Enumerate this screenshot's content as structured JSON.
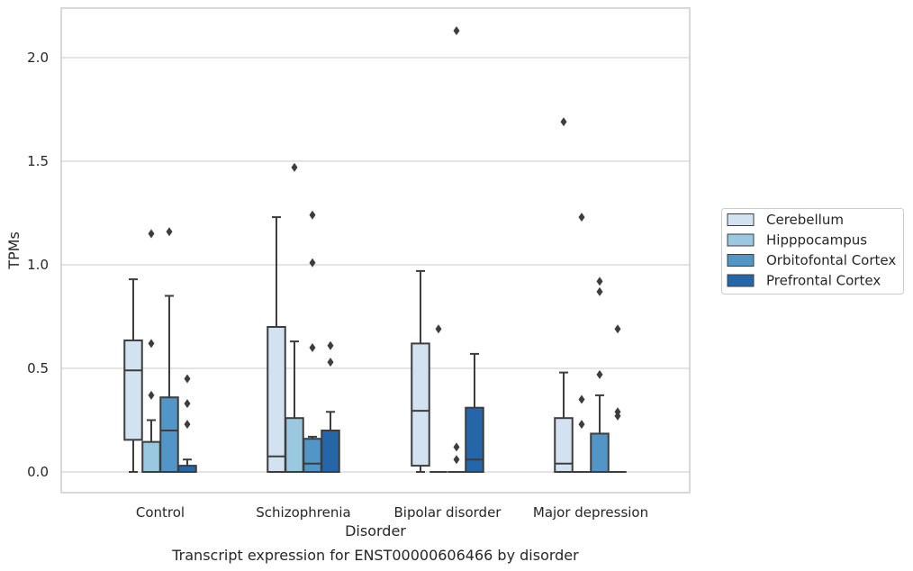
{
  "chart_data": {
    "type": "box",
    "xlabel": "Disorder",
    "ylabel": "TPMs",
    "caption": "Transcript expression for ENST00000606466 by disorder",
    "ylim": [
      -0.1,
      2.25
    ],
    "yticks": [
      "0.0",
      "0.5",
      "1.0",
      "1.5",
      "2.0"
    ],
    "ytick_values": [
      0.0,
      0.5,
      1.0,
      1.5,
      2.0
    ],
    "grid": "horizontal",
    "legend_position": "right",
    "categories": [
      "Control",
      "Schizophrenia",
      "Bipolar disorder",
      "Major depression"
    ],
    "series": [
      {
        "name": "Cerebellum",
        "color": "#d2e2f1",
        "boxes": [
          {
            "low": 0.0,
            "q1": 0.155,
            "median": 0.49,
            "q3": 0.635,
            "high": 0.93,
            "outliers": []
          },
          {
            "low": 0.0,
            "q1": 0.0,
            "median": 0.075,
            "q3": 0.7,
            "high": 1.23,
            "outliers": []
          },
          {
            "low": 0.0,
            "q1": 0.03,
            "median": 0.295,
            "q3": 0.62,
            "high": 0.97,
            "outliers": []
          },
          {
            "low": 0.0,
            "q1": 0.0,
            "median": 0.04,
            "q3": 0.26,
            "high": 0.48,
            "outliers": [
              1.69
            ]
          }
        ]
      },
      {
        "name": "Hipppocampus",
        "color": "#9ac8e0",
        "boxes": [
          {
            "low": 0.0,
            "q1": 0.0,
            "median": 0.0,
            "q3": 0.145,
            "high": 0.25,
            "outliers": [
              0.37,
              0.62,
              1.15
            ]
          },
          {
            "low": 0.0,
            "q1": 0.0,
            "median": 0.0,
            "q3": 0.26,
            "high": 0.63,
            "outliers": [
              1.47
            ]
          },
          {
            "low": 0.0,
            "q1": 0.0,
            "median": 0.0,
            "q3": 0.0,
            "high": 0.0,
            "outliers": [
              0.69
            ]
          },
          {
            "low": 0.0,
            "q1": 0.0,
            "median": 0.0,
            "q3": 0.0,
            "high": 0.0,
            "outliers": [
              0.23,
              0.35,
              1.23
            ]
          }
        ]
      },
      {
        "name": "Orbitofontal Cortex",
        "color": "#5296c7",
        "boxes": [
          {
            "low": 0.0,
            "q1": 0.0,
            "median": 0.2,
            "q3": 0.36,
            "high": 0.85,
            "outliers": [
              1.16
            ]
          },
          {
            "low": 0.0,
            "q1": 0.0,
            "median": 0.04,
            "q3": 0.16,
            "high": 0.17,
            "outliers": [
              0.6,
              1.01,
              1.24
            ]
          },
          {
            "low": 0.0,
            "q1": 0.0,
            "median": 0.0,
            "q3": 0.0,
            "high": 0.0,
            "outliers": [
              0.06,
              0.12,
              2.13
            ]
          },
          {
            "low": 0.0,
            "q1": 0.0,
            "median": 0.0,
            "q3": 0.185,
            "high": 0.37,
            "outliers": [
              0.47,
              0.87,
              0.92
            ]
          }
        ]
      },
      {
        "name": "Prefrontal Cortex",
        "color": "#2566a8",
        "boxes": [
          {
            "low": 0.0,
            "q1": 0.0,
            "median": 0.0,
            "q3": 0.03,
            "high": 0.06,
            "outliers": [
              0.23,
              0.33,
              0.45
            ]
          },
          {
            "low": 0.0,
            "q1": 0.0,
            "median": 0.0,
            "q3": 0.2,
            "high": 0.29,
            "outliers": [
              0.53,
              0.61
            ]
          },
          {
            "low": 0.0,
            "q1": 0.0,
            "median": 0.06,
            "q3": 0.31,
            "high": 0.57,
            "outliers": []
          },
          {
            "low": 0.0,
            "q1": 0.0,
            "median": 0.0,
            "q3": 0.0,
            "high": 0.0,
            "outliers": [
              0.27,
              0.29,
              0.69
            ]
          }
        ]
      }
    ]
  }
}
